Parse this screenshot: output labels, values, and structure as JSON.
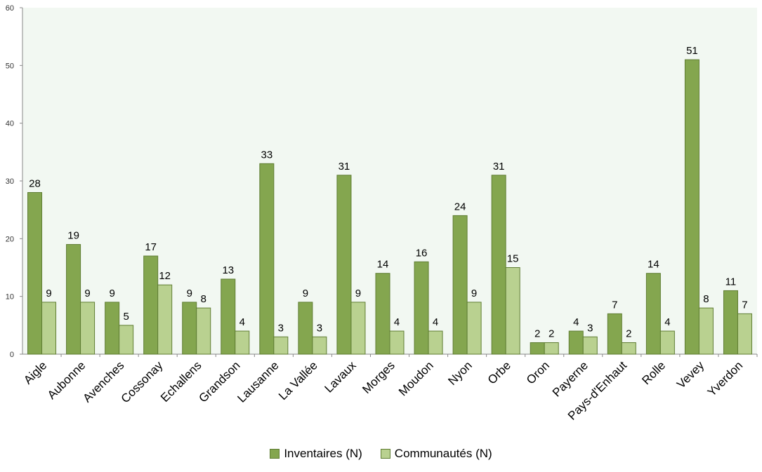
{
  "chart_data": {
    "type": "bar",
    "categories": [
      "Aigle",
      "Aubonne",
      "Avenches",
      "Cossonay",
      "Echallens",
      "Grandson",
      "Lausanne",
      "La Vallée",
      "Lavaux",
      "Morges",
      "Moudon",
      "Nyon",
      "Orbe",
      "Oron",
      "Payerne",
      "Pays-d'Enhaut",
      "Rolle",
      "Vevey",
      "Yverdon"
    ],
    "series": [
      {
        "name": "Inventaires (N)",
        "color": "#84a64f",
        "values": [
          28,
          19,
          9,
          17,
          9,
          13,
          33,
          9,
          31,
          14,
          16,
          24,
          31,
          2,
          4,
          7,
          14,
          51,
          11
        ]
      },
      {
        "name": "Communautés (N)",
        "color": "#b9d190",
        "values": [
          9,
          9,
          5,
          12,
          8,
          4,
          3,
          3,
          9,
          4,
          4,
          9,
          15,
          2,
          3,
          2,
          4,
          8,
          7
        ]
      }
    ],
    "ylim": [
      0,
      60
    ],
    "yticks": [
      0,
      10,
      20,
      30,
      40,
      50,
      60
    ],
    "grid": false,
    "legend_position": "bottom",
    "plot_background": "#f2f8f2"
  }
}
